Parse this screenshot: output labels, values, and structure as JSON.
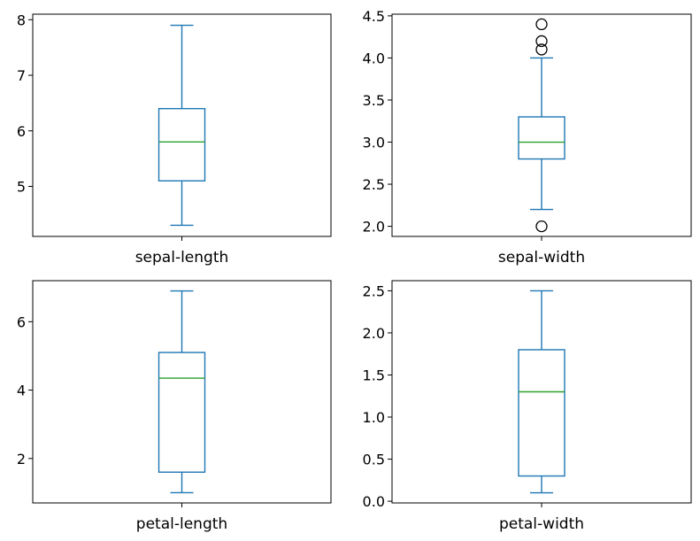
{
  "chart_data": [
    {
      "type": "box",
      "categories": [
        "sepal-length"
      ],
      "ylim": [
        4.1,
        8.1
      ],
      "yticks": [
        "5",
        "6",
        "7",
        "8"
      ],
      "box": {
        "whisker_low": 4.3,
        "q1": 5.1,
        "median": 5.8,
        "q3": 6.4,
        "whisker_high": 7.9
      },
      "outliers": []
    },
    {
      "type": "box",
      "categories": [
        "sepal-width"
      ],
      "ylim": [
        1.88,
        4.52
      ],
      "yticks": [
        "2.0",
        "2.5",
        "3.0",
        "3.5",
        "4.0",
        "4.5"
      ],
      "box": {
        "whisker_low": 2.2,
        "q1": 2.8,
        "median": 3.0,
        "q3": 3.3,
        "whisker_high": 4.0
      },
      "outliers": [
        2.0,
        4.1,
        4.2,
        4.4
      ]
    },
    {
      "type": "box",
      "categories": [
        "petal-length"
      ],
      "ylim": [
        0.7,
        7.2
      ],
      "yticks": [
        "2",
        "4",
        "6"
      ],
      "box": {
        "whisker_low": 1.0,
        "q1": 1.6,
        "median": 4.35,
        "q3": 5.1,
        "whisker_high": 6.9
      },
      "outliers": []
    },
    {
      "type": "box",
      "categories": [
        "petal-width"
      ],
      "ylim": [
        -0.02,
        2.62
      ],
      "yticks": [
        "0.0",
        "0.5",
        "1.0",
        "1.5",
        "2.0",
        "2.5"
      ],
      "box": {
        "whisker_low": 0.1,
        "q1": 0.3,
        "median": 1.3,
        "q3": 1.8,
        "whisker_high": 2.5
      },
      "outliers": []
    }
  ],
  "colors": {
    "box": "#1f77b4",
    "median": "#2ca02c",
    "axes": "#000000"
  }
}
